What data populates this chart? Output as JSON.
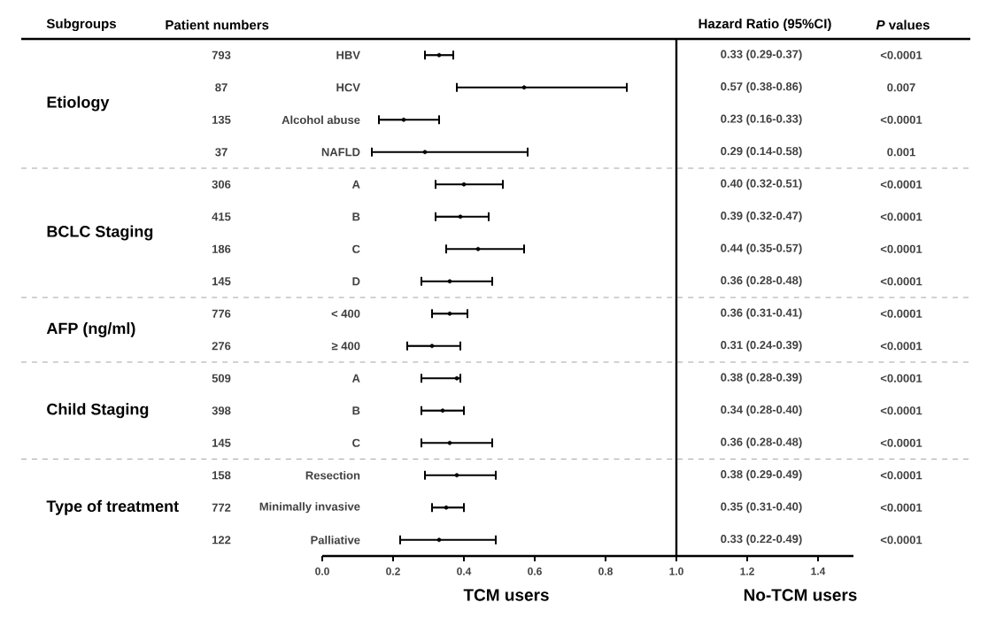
{
  "chart_data": {
    "type": "scatter",
    "orientation": "horizontal",
    "categories": [
      "HBV",
      "HCV",
      "Alcohol abuse",
      "NAFLD",
      "A",
      "B",
      "C",
      "D",
      "< 400",
      "≥ 400",
      "A",
      "B",
      "C",
      "Resection",
      "Minimally invasive",
      "Palliative"
    ],
    "values": [
      0.33,
      0.57,
      0.23,
      0.29,
      0.4,
      0.39,
      0.44,
      0.36,
      0.36,
      0.31,
      0.38,
      0.34,
      0.36,
      0.38,
      0.35,
      0.33
    ],
    "errors": [
      [
        0.29,
        0.37
      ],
      [
        0.38,
        0.86
      ],
      [
        0.16,
        0.33
      ],
      [
        0.14,
        0.58
      ],
      [
        0.32,
        0.51
      ],
      [
        0.32,
        0.47
      ],
      [
        0.35,
        0.57
      ],
      [
        0.28,
        0.48
      ],
      [
        0.31,
        0.41
      ],
      [
        0.24,
        0.39
      ],
      [
        0.28,
        0.39
      ],
      [
        0.28,
        0.4
      ],
      [
        0.28,
        0.48
      ],
      [
        0.29,
        0.49
      ],
      [
        0.31,
        0.4
      ],
      [
        0.22,
        0.49
      ]
    ],
    "color": "#000000",
    "marker": "circle",
    "xlim": [
      0,
      1.5
    ],
    "xticks": [
      {
        "value": 0,
        "label": "0.0"
      },
      {
        "value": 0.2,
        "label": "0.2"
      },
      {
        "value": 0.4,
        "label": "0.4"
      },
      {
        "value": 0.6,
        "label": "0.6"
      },
      {
        "value": 0.8,
        "label": "0.8"
      },
      {
        "value": 1,
        "label": "1.0"
      },
      {
        "value": 1.2,
        "label": "1.2"
      },
      {
        "value": 1.4,
        "label": "1.4"
      }
    ],
    "ref_lines": [
      {
        "axis": "x",
        "value": 1
      }
    ],
    "annotations": [
      "793",
      "87",
      "135",
      "37",
      "306",
      "415",
      "186",
      "145",
      "776",
      "276",
      "509",
      "398",
      "145",
      "158",
      "772",
      "122",
      "0.33 (0.29-0.37)",
      "0.57 (0.38-0.86)",
      "0.23 (0.16-0.33)",
      "0.29 (0.14-0.58)",
      "0.40 (0.32-0.51)",
      "0.39 (0.32-0.47)",
      "0.44 (0.35-0.57)",
      "0.36 (0.28-0.48)",
      "0.36 (0.31-0.41)",
      "0.31 (0.24-0.39)",
      "0.38 (0.28-0.39)",
      "0.34 (0.28-0.40)",
      "0.36 (0.28-0.48)",
      "0.38 (0.29-0.49)",
      "0.35 (0.31-0.40)",
      "0.33 (0.22-0.49)",
      "<0.0001",
      "0.007",
      "<0.0001",
      "0.001",
      "<0.0001",
      "<0.0001",
      "<0.0001",
      "<0.0001",
      "<0.0001",
      "<0.0001",
      "<0.0001",
      "<0.0001",
      "<0.0001",
      "<0.0001",
      "<0.0001",
      "<0.0001",
      "Subgroups",
      "Patient numbers",
      "Hazard Ratio (95%CI)",
      "*P* values",
      "TCM users",
      "No-TCM users",
      "Etiology",
      "BCLC Staging",
      "AFP (ng/ml)",
      "Child Staging",
      "Type of treatment"
    ]
  }
}
